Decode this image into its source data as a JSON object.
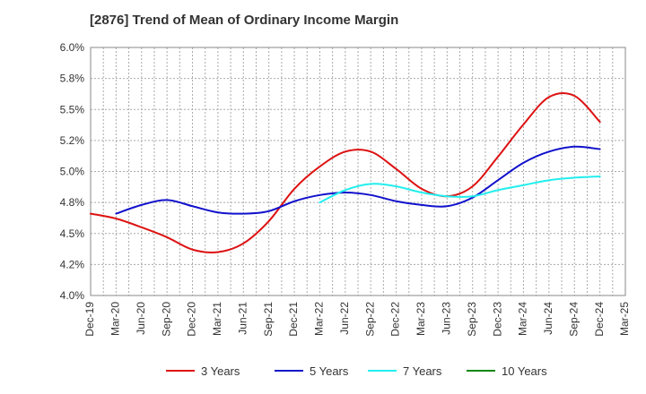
{
  "chart_data": {
    "type": "line",
    "title": "[2876]  Trend of Mean of Ordinary Income Margin",
    "xlabel": "",
    "ylabel": "",
    "categories": [
      "Dec-19",
      "Mar-20",
      "Jun-20",
      "Sep-20",
      "Dec-20",
      "Mar-21",
      "Jun-21",
      "Sep-21",
      "Dec-21",
      "Mar-22",
      "Jun-22",
      "Sep-22",
      "Dec-22",
      "Mar-23",
      "Jun-23",
      "Sep-23",
      "Dec-23",
      "Mar-24",
      "Jun-24",
      "Sep-24",
      "Dec-24",
      "Mar-25"
    ],
    "ylim": [
      4.0,
      6.0
    ],
    "yticks": [
      4.0,
      4.25,
      4.5,
      4.75,
      5.0,
      5.25,
      5.5,
      5.75,
      6.0
    ],
    "ytick_labels": [
      "4.0%",
      "4.2%",
      "4.5%",
      "4.8%",
      "5.0%",
      "5.2%",
      "5.5%",
      "5.8%",
      "6.0%"
    ],
    "grid": true,
    "legend_position": "bottom",
    "series": [
      {
        "name": "3 Years",
        "color": "#dd1111",
        "values": [
          4.66,
          4.62,
          4.55,
          4.47,
          4.37,
          4.35,
          4.42,
          4.6,
          4.86,
          5.04,
          5.16,
          5.16,
          5.02,
          4.86,
          4.8,
          4.88,
          5.12,
          5.38,
          5.6,
          5.61,
          5.4,
          null
        ]
      },
      {
        "name": "5 Years",
        "color": "#1111cc",
        "values": [
          null,
          4.66,
          4.73,
          4.77,
          4.72,
          4.67,
          4.66,
          4.68,
          4.76,
          4.81,
          4.83,
          4.81,
          4.76,
          4.73,
          4.72,
          4.79,
          4.93,
          5.07,
          5.16,
          5.2,
          5.18,
          null
        ]
      },
      {
        "name": "7 Years",
        "color": "#22eeee",
        "values": [
          null,
          null,
          null,
          null,
          null,
          null,
          null,
          null,
          null,
          4.75,
          4.85,
          4.9,
          4.88,
          4.83,
          4.8,
          4.8,
          4.85,
          4.89,
          4.93,
          4.95,
          4.96,
          null
        ]
      },
      {
        "name": "10 Years",
        "color": "#118811",
        "values": [
          null,
          null,
          null,
          null,
          null,
          null,
          null,
          null,
          null,
          null,
          null,
          null,
          null,
          null,
          null,
          null,
          null,
          null,
          null,
          null,
          null,
          null
        ]
      }
    ]
  }
}
